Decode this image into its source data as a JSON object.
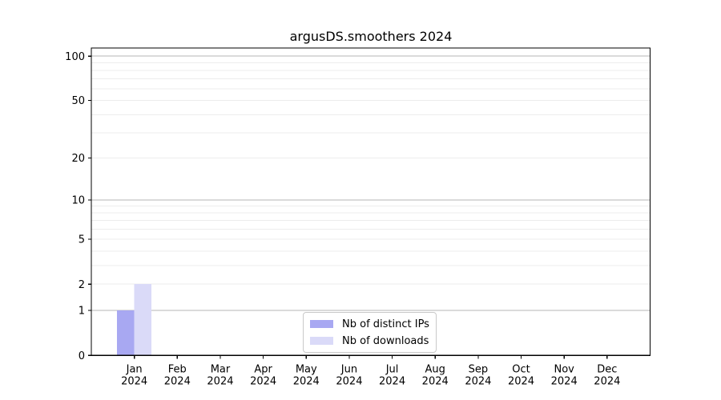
{
  "chart_data": {
    "type": "bar",
    "title": "argusDS.smoothers 2024",
    "categories": [
      "Jan",
      "Feb",
      "Mar",
      "Apr",
      "May",
      "Jun",
      "Jul",
      "Aug",
      "Sep",
      "Oct",
      "Nov",
      "Dec"
    ],
    "category_year": "2024",
    "series": [
      {
        "name": "Nb of distinct IPs",
        "color": "#a8a8f2",
        "values": [
          1,
          0,
          0,
          0,
          0,
          0,
          0,
          0,
          0,
          0,
          0,
          0
        ]
      },
      {
        "name": "Nb of downloads",
        "color": "#dadaf8",
        "values": [
          2,
          0,
          0,
          0,
          0,
          0,
          0,
          0,
          0,
          0,
          0,
          0
        ]
      }
    ],
    "yticks": [
      0,
      1,
      2,
      5,
      10,
      20,
      50,
      100
    ],
    "major_gridlines": [
      1,
      10,
      100
    ],
    "minor_gridlines": [
      2,
      3,
      4,
      5,
      6,
      7,
      8,
      9,
      20,
      30,
      40,
      50,
      60,
      70,
      80,
      90
    ],
    "yscale": "log1p",
    "ylim": [
      0,
      113.5
    ],
    "xlabel": "",
    "ylabel": "",
    "grid": "both",
    "legend_position": "lower center"
  },
  "colors": {
    "axis": "#000000",
    "major_grid": "#b6b6b6",
    "minor_grid": "#ececec",
    "background": "#ffffff",
    "legend_border": "#c9c9c9"
  }
}
